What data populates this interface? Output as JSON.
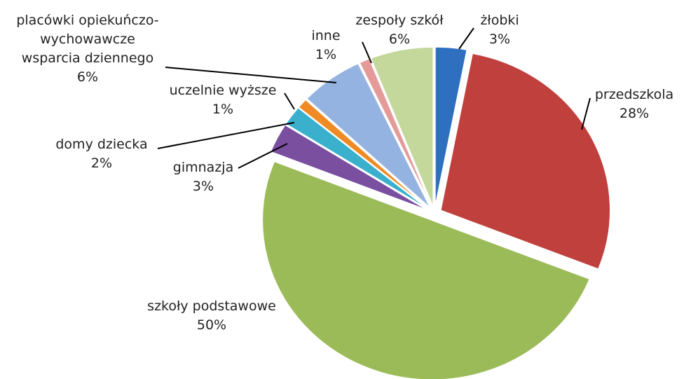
{
  "chart_data": {
    "type": "pie",
    "categories": [
      "żłobki",
      "przedszkola",
      "szkoły podstawowe",
      "gimnazja",
      "domy dziecka",
      "uczelnie wyższe",
      "placówki opiekuńczo-\nwychowawcze\nwsparcia dziennego",
      "inne",
      "zespoły szkół"
    ],
    "values": [
      3,
      28,
      50,
      3,
      2,
      1,
      6,
      1,
      6
    ],
    "value_labels": [
      "3%",
      "28%",
      "50%",
      "3%",
      "2%",
      "1%",
      "6%",
      "1%",
      "6%"
    ],
    "colors": [
      "#2e6fc0",
      "#c0403d",
      "#9bbb59",
      "#7a4fa0",
      "#3bb0cc",
      "#f08a24",
      "#95b3e0",
      "#e59a9a",
      "#c4d89c"
    ]
  }
}
